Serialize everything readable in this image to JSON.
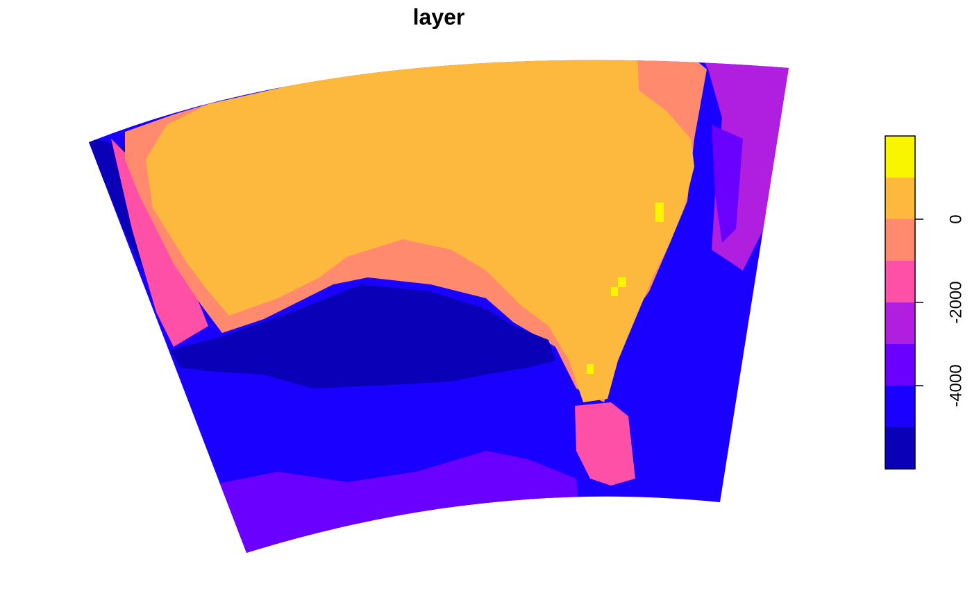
{
  "title": "layer",
  "legend": {
    "colors": [
      "#0a00b8",
      "#1a00ff",
      "#6a00ff",
      "#b01fe0",
      "#ff50a8",
      "#ff8a6e",
      "#fdb93d",
      "#f9f400"
    ],
    "ylim": [
      -6000,
      2000
    ],
    "yticks": [
      -4000,
      -2000,
      0
    ]
  }
}
